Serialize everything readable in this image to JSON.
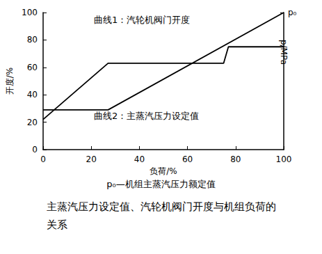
{
  "chart_data": {
    "type": "line",
    "title": "主蒸汽压力设定值、汽轮机阀门开度与机组负荷的关系",
    "subtitle": "p₀—机组主蒸汽压力额定值",
    "x_label": "负荷/%",
    "y_label": "开度/%",
    "y2_label": "p/MPa",
    "xlim": [
      0,
      100
    ],
    "xticks": [
      0,
      20,
      40,
      60,
      80,
      100
    ],
    "ylim": [
      0,
      100
    ],
    "yticks": [
      0,
      20,
      40,
      60,
      80,
      100
    ],
    "y2lim": [
      0,
      100
    ],
    "y2ticks": [
      {
        "value": 100,
        "label": "p₀"
      }
    ],
    "grid": false,
    "marker": "none",
    "line_style": "solid",
    "series": [
      {
        "name": "曲线1：汽轮机阀门开度",
        "color": "#000000",
        "x": [
          0,
          27,
          75,
          77,
          100
        ],
        "values": [
          22,
          63,
          63,
          75,
          75
        ]
      },
      {
        "name": "曲线2：主蒸汽压力设定值",
        "color": "#000000",
        "axis": "y2",
        "x": [
          0,
          27,
          100
        ],
        "values": [
          29,
          29,
          100
        ]
      }
    ]
  }
}
